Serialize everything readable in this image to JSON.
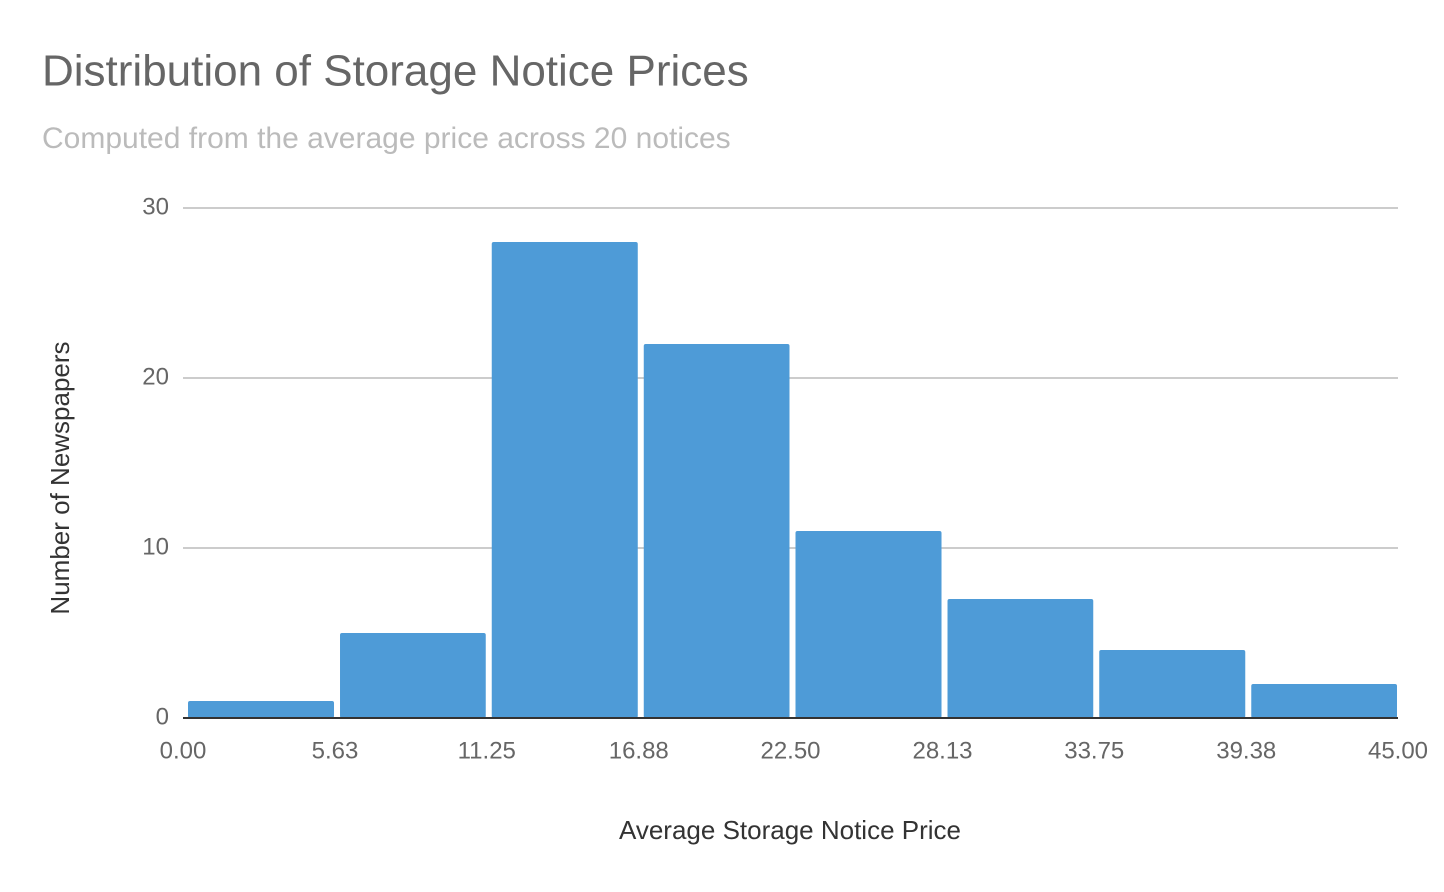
{
  "chart_data": {
    "type": "histogram",
    "title": "Distribution of Storage Notice Prices",
    "subtitle": "Computed from the average price across 20 notices",
    "x_label": "Average Storage Notice Price",
    "y_label": "Number of Newspapers",
    "bins": [
      0,
      5.63,
      11.25,
      16.88,
      22.5,
      28.13,
      33.75,
      39.38,
      45
    ],
    "values": [
      1,
      5,
      28,
      22,
      11,
      7,
      4,
      2
    ],
    "color": "#4e9bd7",
    "xlim": [
      0,
      45
    ],
    "ylim": [
      0,
      30
    ],
    "xticks": [
      {
        "value": 0,
        "label": "0.00"
      },
      5.63,
      11.25,
      16.88,
      {
        "value": 22.5,
        "label": "22.50"
      },
      28.13,
      33.75,
      39.38,
      {
        "value": 45,
        "label": "45.00"
      }
    ],
    "yticks": [
      0,
      10,
      20,
      30
    ],
    "grid": true
  }
}
